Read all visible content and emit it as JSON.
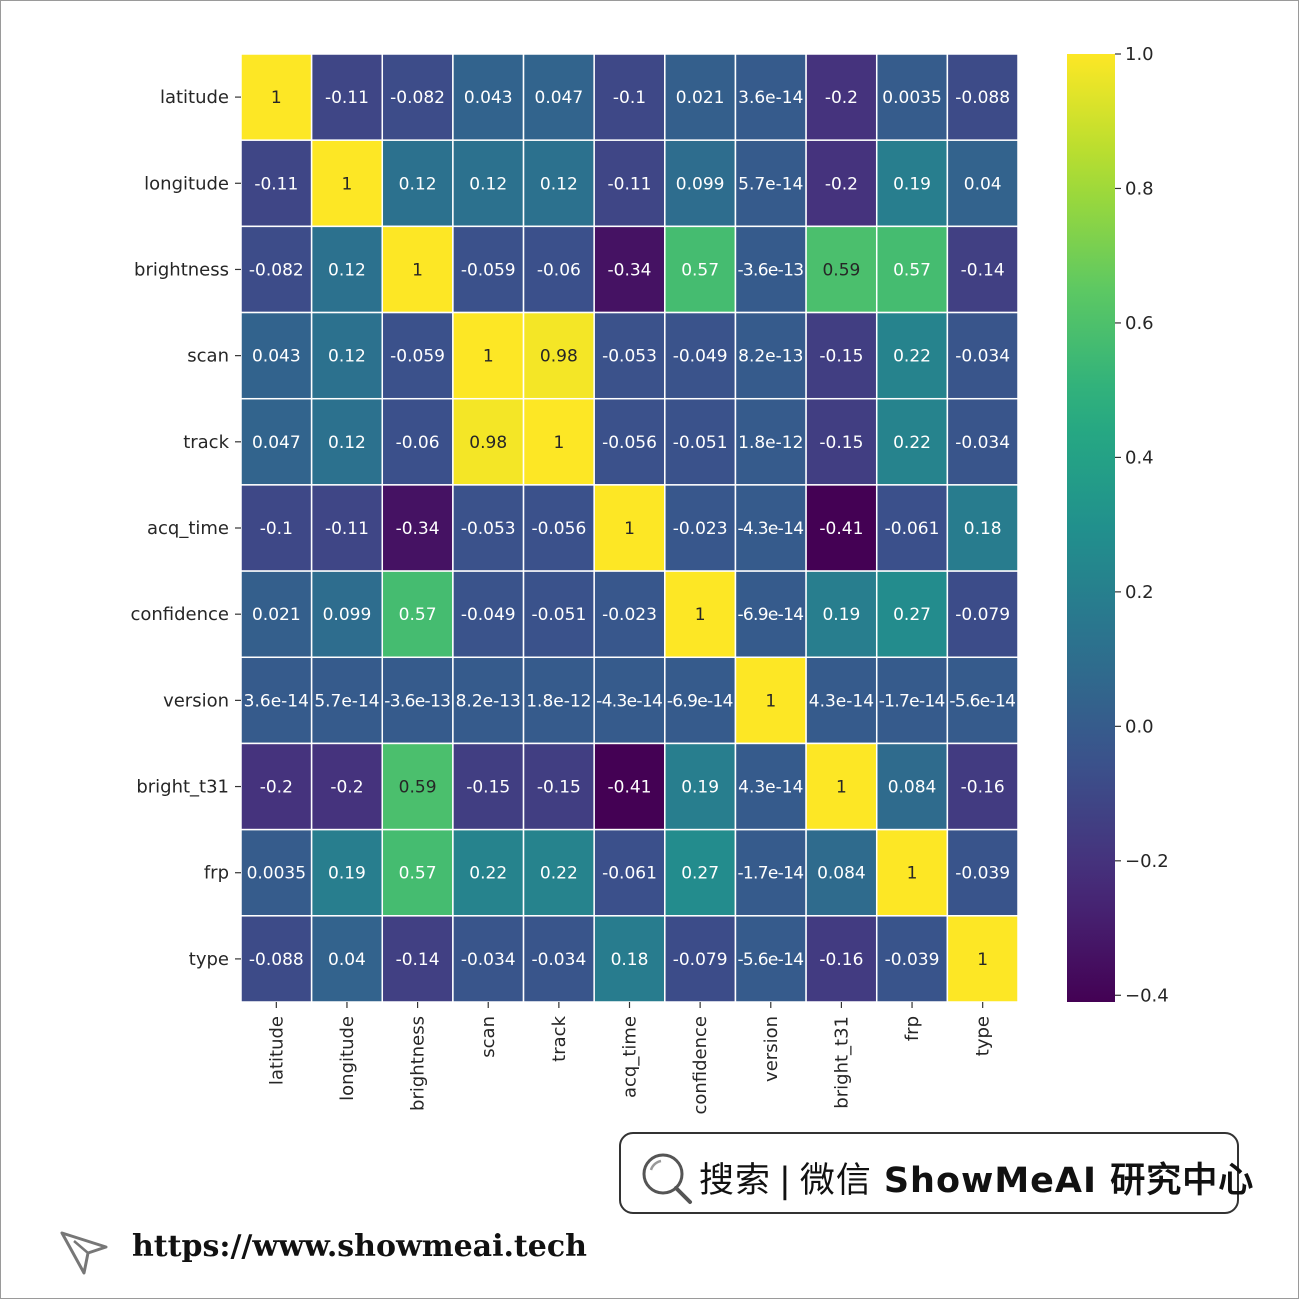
{
  "chart_data": {
    "type": "heatmap",
    "labels": [
      "latitude",
      "longitude",
      "brightness",
      "scan",
      "track",
      "acq_time",
      "confidence",
      "version",
      "bright_t31",
      "frp",
      "type"
    ],
    "values": [
      [
        1,
        -0.11,
        -0.082,
        0.043,
        0.047,
        -0.1,
        0.021,
        3.6e-14,
        -0.2,
        0.0035,
        -0.088
      ],
      [
        -0.11,
        1,
        0.12,
        0.12,
        0.12,
        -0.11,
        0.099,
        5.7e-14,
        -0.2,
        0.19,
        0.04
      ],
      [
        -0.082,
        0.12,
        1,
        -0.059,
        -0.06,
        -0.34,
        0.57,
        -3.6e-13,
        0.59,
        0.57,
        -0.14
      ],
      [
        0.043,
        0.12,
        -0.059,
        1,
        0.98,
        -0.053,
        -0.049,
        8.2e-13,
        -0.15,
        0.22,
        -0.034
      ],
      [
        0.047,
        0.12,
        -0.06,
        0.98,
        1,
        -0.056,
        -0.051,
        1.8e-12,
        -0.15,
        0.22,
        -0.034
      ],
      [
        -0.1,
        -0.11,
        -0.34,
        -0.053,
        -0.056,
        1,
        -0.023,
        -4.3e-14,
        -0.41,
        -0.061,
        0.18
      ],
      [
        0.021,
        0.099,
        0.57,
        -0.049,
        -0.051,
        -0.023,
        1,
        -6.9e-14,
        0.19,
        0.27,
        -0.079
      ],
      [
        3.6e-14,
        5.7e-14,
        -3.6e-13,
        8.2e-13,
        1.8e-12,
        -4.3e-14,
        -6.9e-14,
        1,
        4.3e-14,
        -1.7e-14,
        -5.6e-14
      ],
      [
        -0.2,
        -0.2,
        0.59,
        -0.15,
        -0.15,
        -0.41,
        0.19,
        4.3e-14,
        1,
        0.084,
        -0.16
      ],
      [
        0.0035,
        0.19,
        0.57,
        0.22,
        0.22,
        -0.061,
        0.27,
        -1.7e-14,
        0.084,
        1,
        -0.039
      ],
      [
        -0.088,
        0.04,
        -0.14,
        -0.034,
        -0.034,
        0.18,
        -0.079,
        -5.6e-14,
        -0.16,
        -0.039,
        1
      ]
    ],
    "cell_labels": [
      [
        "1",
        "-0.11",
        "-0.082",
        "0.043",
        "0.047",
        "-0.1",
        "0.021",
        "3.6e-14",
        "-0.2",
        "0.0035",
        "-0.088"
      ],
      [
        "-0.11",
        "1",
        "0.12",
        "0.12",
        "0.12",
        "-0.11",
        "0.099",
        "5.7e-14",
        "-0.2",
        "0.19",
        "0.04"
      ],
      [
        "-0.082",
        "0.12",
        "1",
        "-0.059",
        "-0.06",
        "-0.34",
        "0.57",
        "-3.6e-13",
        "0.59",
        "0.57",
        "-0.14"
      ],
      [
        "0.043",
        "0.12",
        "-0.059",
        "1",
        "0.98",
        "-0.053",
        "-0.049",
        "8.2e-13",
        "-0.15",
        "0.22",
        "-0.034"
      ],
      [
        "0.047",
        "0.12",
        "-0.06",
        "0.98",
        "1",
        "-0.056",
        "-0.051",
        "1.8e-12",
        "-0.15",
        "0.22",
        "-0.034"
      ],
      [
        "-0.1",
        "-0.11",
        "-0.34",
        "-0.053",
        "-0.056",
        "1",
        "-0.023",
        "-4.3e-14",
        "-0.41",
        "-0.061",
        "0.18"
      ],
      [
        "0.021",
        "0.099",
        "0.57",
        "-0.049",
        "-0.051",
        "-0.023",
        "1",
        "-6.9e-14",
        "0.19",
        "0.27",
        "-0.079"
      ],
      [
        "3.6e-14",
        "5.7e-14",
        "-3.6e-13",
        "8.2e-13",
        "1.8e-12",
        "-4.3e-14",
        "-6.9e-14",
        "1",
        "4.3e-14",
        "-1.7e-14",
        "-5.6e-14"
      ],
      [
        "-0.2",
        "-0.2",
        "0.59",
        "-0.15",
        "-0.15",
        "-0.41",
        "0.19",
        "4.3e-14",
        "1",
        "0.084",
        "-0.16"
      ],
      [
        "0.0035",
        "0.19",
        "0.57",
        "0.22",
        "0.22",
        "-0.061",
        "0.27",
        "-1.7e-14",
        "0.084",
        "1",
        "-0.039"
      ],
      [
        "-0.088",
        "0.04",
        "-0.14",
        "-0.034",
        "-0.034",
        "0.18",
        "-0.079",
        "-5.6e-14",
        "-0.16",
        "-0.039",
        "1"
      ]
    ],
    "colormap": "viridis",
    "vmin": -0.41,
    "vmax": 1.0,
    "colorbar_ticks": [
      1.0,
      0.8,
      0.6,
      0.4,
      0.2,
      0.0,
      -0.2,
      -0.4
    ],
    "colorbar_tick_labels": [
      "1.0",
      "0.8",
      "0.6",
      "0.4",
      "0.2",
      "0.0",
      "−0.2",
      "−0.4"
    ],
    "cell_gridlines": "white",
    "title": "",
    "xlabel": "",
    "ylabel": ""
  },
  "footer": {
    "search_label": "搜索",
    "separator": "|",
    "wechat_label": "微信",
    "brand": "ShowMeAI 研究中心",
    "url": "https://www.showmeai.tech"
  }
}
